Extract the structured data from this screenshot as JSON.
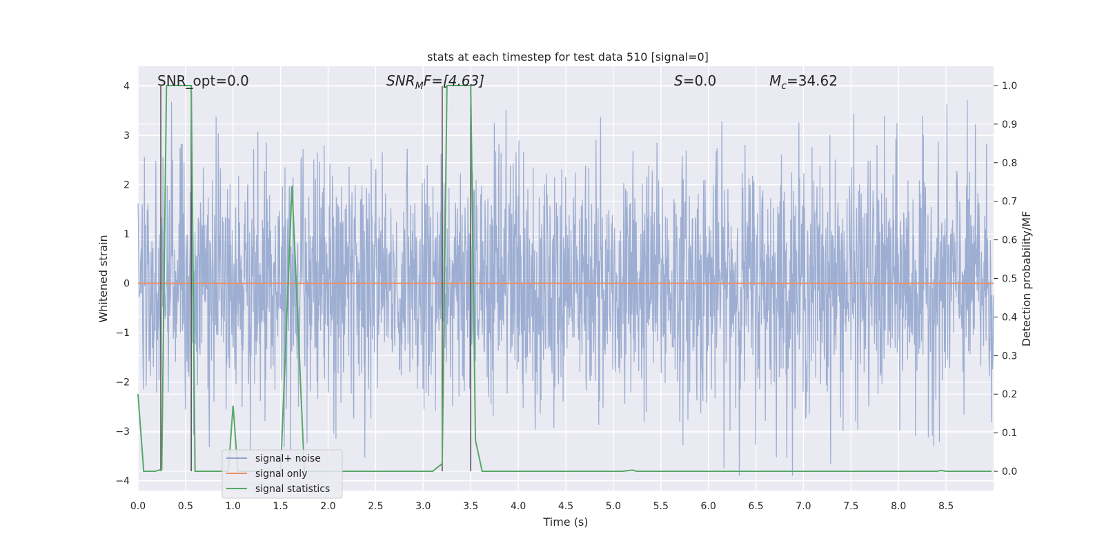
{
  "chart_data": {
    "type": "line",
    "title": "stats at each timestep for test data 510 [signal=0]",
    "xlabel": "Time (s)",
    "ylabel": "Whitened strain",
    "y2label": "Detection probability/MF",
    "xlim": [
      0.0,
      9.0
    ],
    "ylim": [
      -4.2,
      4.4
    ],
    "y2lim": [
      -0.05,
      1.05
    ],
    "x_ticks": [
      "0.0",
      "0.5",
      "1.0",
      "1.5",
      "2.0",
      "2.5",
      "3.0",
      "3.5",
      "4.0",
      "4.5",
      "5.0",
      "5.5",
      "6.0",
      "6.5",
      "7.0",
      "7.5",
      "8.0",
      "8.5"
    ],
    "y_ticks": [
      "4",
      "3",
      "2",
      "1",
      "0",
      "−1",
      "−2",
      "−3",
      "−4"
    ],
    "y2_ticks": [
      "1.0",
      "0.9",
      "0.8",
      "0.7",
      "0.6",
      "0.5",
      "0.4",
      "0.3",
      "0.2",
      "0.1",
      "0.0"
    ],
    "grid": true,
    "legend_position": "lower-left",
    "annotations": {
      "snr_opt": "SNR_opt=0.0",
      "snr_mf_main": "SNR",
      "snr_mf_sub": "M",
      "snr_mf_rest": "F=[4.63]",
      "s_main": "S",
      "s_rest": "=0.0",
      "mc_main": "M",
      "mc_sub": "c",
      "mc_rest": "=34.62"
    },
    "vlines": [
      0.24,
      0.56,
      3.2,
      3.5
    ],
    "series": [
      {
        "name": "signal+ noise",
        "color": "#8fa3cc",
        "axis": "left",
        "noise": {
          "sigma": 1.0,
          "t_start": 0.0,
          "t_end": 9.0,
          "samples": 2400
        }
      },
      {
        "name": "signal only",
        "color": "#e8906a",
        "axis": "left",
        "x": [
          0.0,
          9.0
        ],
        "values": [
          0.0,
          0.0
        ]
      },
      {
        "name": "signal statistics",
        "color": "#55a868",
        "axis": "right",
        "x": [
          0.0,
          0.06,
          0.1,
          0.18,
          0.25,
          0.3,
          0.4,
          0.5,
          0.56,
          0.6,
          0.7,
          0.95,
          1.0,
          1.05,
          1.15,
          1.5,
          1.62,
          1.75,
          3.1,
          3.2,
          3.25,
          3.3,
          3.5,
          3.55,
          3.62,
          5.1,
          5.2,
          5.25,
          8.4,
          8.45,
          8.5,
          8.98
        ],
        "values": [
          0.2,
          0.0,
          0.0,
          0.0,
          0.005,
          1.0,
          1.0,
          1.0,
          1.0,
          0.0,
          0.0,
          0.0,
          0.17,
          0.0,
          0.0,
          0.0,
          0.74,
          0.0,
          0.0,
          0.02,
          1.0,
          1.0,
          1.0,
          0.08,
          0.0,
          0.0,
          0.003,
          0.0,
          0.0,
          0.002,
          0.0,
          0.0
        ]
      }
    ]
  }
}
